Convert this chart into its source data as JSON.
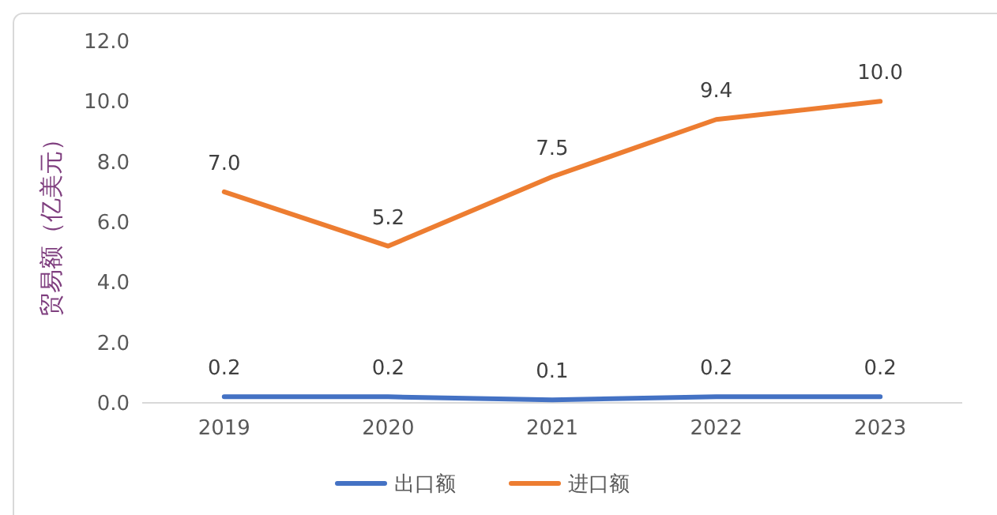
{
  "chart_data": {
    "type": "line",
    "ylabel": "贸易额（亿美元）",
    "categories": [
      "2019",
      "2020",
      "2021",
      "2022",
      "2023"
    ],
    "series": [
      {
        "name": "出口额",
        "color": "#4472c4",
        "values": [
          0.2,
          0.2,
          0.1,
          0.2,
          0.2
        ],
        "value_labels": [
          "0.2",
          "0.2",
          "0.1",
          "0.2",
          "0.2"
        ]
      },
      {
        "name": "进口额",
        "color": "#ed7d31",
        "values": [
          7.0,
          5.2,
          7.5,
          9.4,
          10.0
        ],
        "value_labels": [
          "7.0",
          "5.2",
          "7.5",
          "9.4",
          "10.0"
        ]
      }
    ],
    "ylim": [
      0,
      12
    ],
    "yticks": [
      {
        "value": 0,
        "label": "0.0"
      },
      {
        "value": 2,
        "label": "2.0"
      },
      {
        "value": 4,
        "label": "4.0"
      },
      {
        "value": 6,
        "label": "6.0"
      },
      {
        "value": 8,
        "label": "8.0"
      },
      {
        "value": 10,
        "label": "10.0"
      },
      {
        "value": 12,
        "label": "12.0"
      }
    ],
    "grid": false,
    "legend": "bottom",
    "marker": "none",
    "line_style": "solid"
  }
}
